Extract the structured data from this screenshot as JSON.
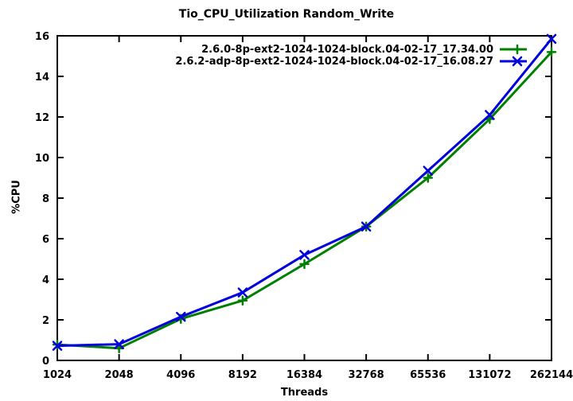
{
  "chart_data": {
    "type": "line",
    "title": "Tio_CPU_Utilization Random_Write",
    "xlabel": "Threads",
    "ylabel": "%CPU",
    "x_scale": "log2-category",
    "categories": [
      1024,
      2048,
      4096,
      8192,
      16384,
      32768,
      65536,
      131072,
      262144
    ],
    "yticks": [
      0,
      2,
      4,
      6,
      8,
      10,
      12,
      14,
      16
    ],
    "ylim": [
      0,
      16
    ],
    "grid": false,
    "legend_position": "top-right-inside",
    "border_color": "#000000",
    "series": [
      {
        "name": "2.6.0-8p-ext2-1024-1024-block.04-02-17_17.34.00",
        "color": "#008000",
        "marker": "plus",
        "values": [
          0.78,
          0.6,
          2.05,
          2.95,
          4.75,
          6.6,
          9.0,
          11.9,
          15.2
        ]
      },
      {
        "name": "2.6.2-adp-8p-ext2-1024-1024-block.04-02-17_16.08.27",
        "color": "#0000dd",
        "marker": "cross",
        "values": [
          0.72,
          0.8,
          2.15,
          3.35,
          5.2,
          6.6,
          9.35,
          12.1,
          15.85
        ]
      }
    ]
  }
}
